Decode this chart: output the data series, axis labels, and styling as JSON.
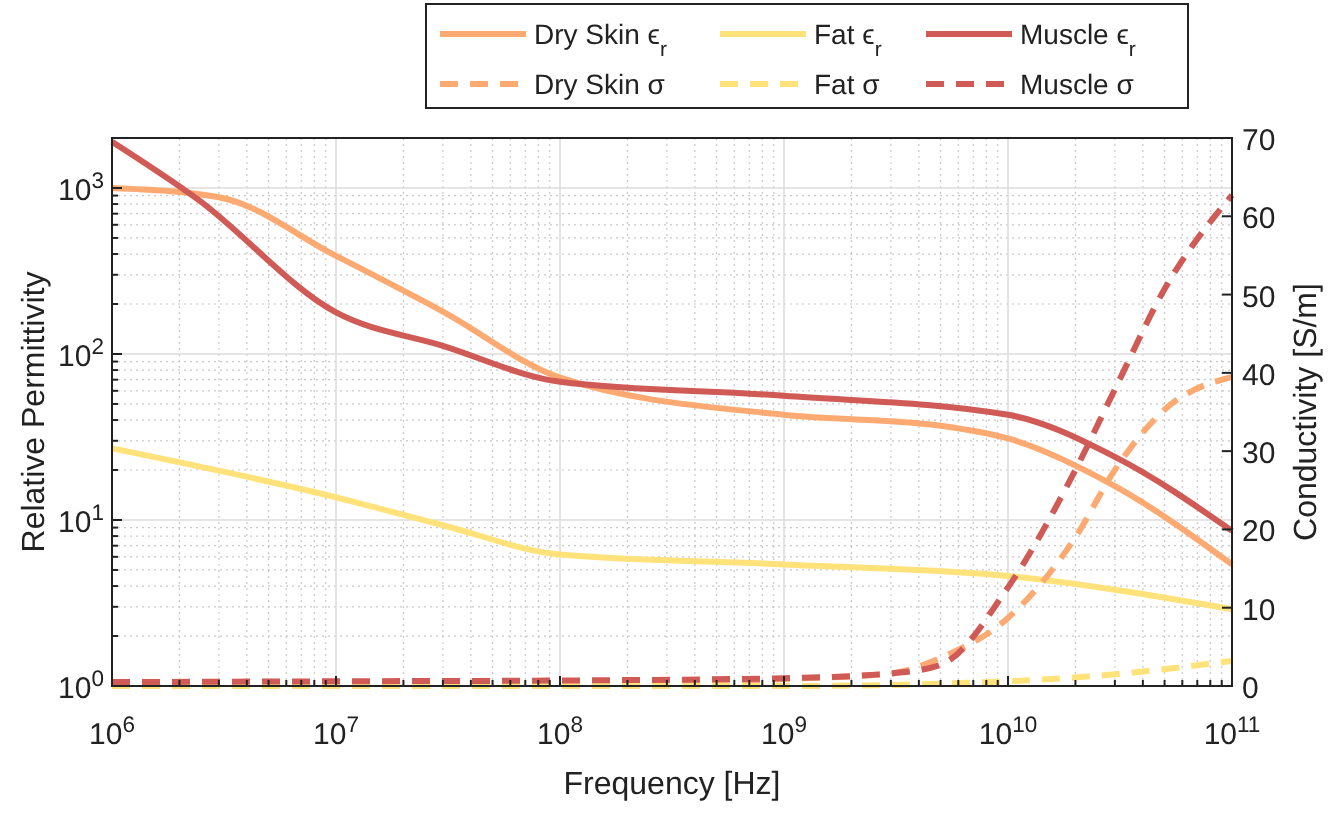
{
  "chart_data": {
    "type": "line",
    "xlabel": "Frequency [Hz]",
    "ylabel": "Relative Permittivity",
    "y2label": "Conductivity [S/m]",
    "log": "xy",
    "grid": true,
    "legend": "top",
    "xlim": [
      1000000,
      100000000000
    ],
    "xticks": [
      {
        "value": 1000000,
        "label": "10$^{6}$"
      },
      {
        "value": 10000000,
        "label": "10$^{7}$"
      },
      {
        "value": 100000000,
        "label": "10$^{8}$"
      },
      {
        "value": 1000000000,
        "label": "10$^{9}$"
      },
      {
        "value": 10000000000,
        "label": "10$^{10}$"
      },
      {
        "value": 100000000000,
        "label": "10$^{11}$"
      }
    ],
    "ylim": [
      1,
      2000
    ],
    "yticks": [
      {
        "value": 1,
        "label": "10$^{0}$"
      },
      {
        "value": 10,
        "label": "10$^{1}$"
      },
      {
        "value": 100,
        "label": "10$^{2}$"
      },
      {
        "value": 1000,
        "label": "10$^{3}$"
      }
    ],
    "y2lim": [
      0,
      70
    ],
    "y2ticks": [
      0,
      10,
      20,
      30,
      40,
      50,
      60,
      70
    ],
    "series": [
      {
        "name": "Dry Skin ϵ$_{r}$",
        "color": "#fdaa72",
        "line_style": "solid",
        "x": [
          1000000,
          3000000,
          10000000,
          30000000,
          100000000,
          1000000000,
          5000000000,
          10000000000,
          30000000000,
          100000000000
        ],
        "values": [
          1000,
          880,
          390,
          180,
          72,
          43,
          37,
          31,
          16,
          5.4
        ]
      },
      {
        "name": "Fat ϵ$_{r}$",
        "color": "#ffe27a",
        "line_style": "solid",
        "x": [
          1000000,
          10000000,
          30000000,
          100000000,
          1000000000,
          10000000000,
          100000000000
        ],
        "values": [
          27,
          13.7,
          9.3,
          6.2,
          5.4,
          4.6,
          2.9
        ]
      },
      {
        "name": "Muscle ϵ$_{r}$",
        "color": "#d05a55",
        "line_style": "solid",
        "x": [
          1000000,
          2400000,
          10000000,
          30000000,
          100000000,
          1000000000,
          10000000000,
          30000000000,
          100000000000
        ],
        "values": [
          1900,
          860,
          178,
          112,
          68,
          56,
          43,
          24,
          8.6
        ]
      },
      {
        "name": "Dry Skin σ",
        "color": "#fdaa72",
        "line_style": "dashed",
        "axis": "y2",
        "x": [
          1000000,
          100000000,
          1000000000,
          3000000000,
          5000000000,
          10000000000,
          20000000000,
          30000000000,
          50000000000,
          100000000000
        ],
        "values": [
          0.1,
          0.3,
          0.9,
          1.6,
          3.6,
          8.7,
          19,
          27.6,
          35.3,
          39.5
        ]
      },
      {
        "name": "Fat σ",
        "color": "#ffe27a",
        "line_style": "dashed",
        "axis": "y2",
        "x": [
          1000000,
          1000000000,
          10000000000,
          30000000000,
          100000000000
        ],
        "values": [
          0,
          0,
          0.6,
          1.5,
          3.2
        ]
      },
      {
        "name": "Muscle σ",
        "color": "#d05a55",
        "line_style": "dashed",
        "axis": "y2",
        "x": [
          1000000,
          10000000,
          100000000,
          1000000000,
          3000000000,
          5000000000,
          10000000000,
          20000000000,
          30000000000,
          50000000000,
          100000000000
        ],
        "values": [
          0.5,
          0.6,
          0.7,
          1.0,
          1.6,
          2.7,
          12.6,
          27.6,
          37.9,
          50.7,
          62.7
        ]
      }
    ]
  }
}
